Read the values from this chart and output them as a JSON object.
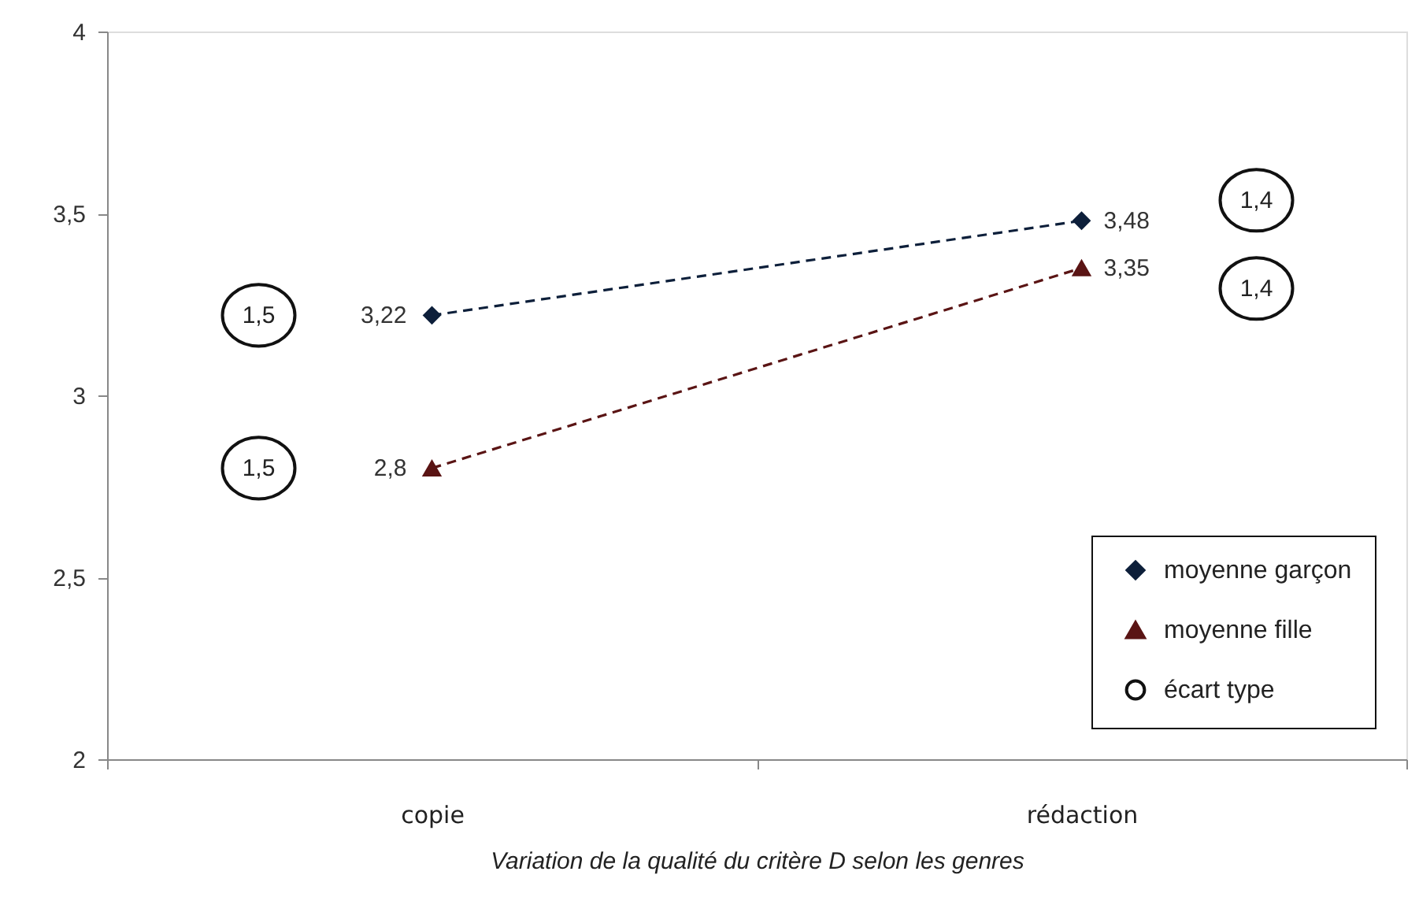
{
  "chart_data": {
    "type": "line",
    "xlabel": "Variation de la qualité du critère D selon les genres",
    "categories": [
      "copie",
      "rédaction"
    ],
    "series": [
      {
        "name": "moyenne garçon",
        "color": "#0d1f3a",
        "marker": "diamond",
        "values": [
          3.22,
          3.48
        ],
        "value_labels": [
          "3,22",
          "3,48"
        ]
      },
      {
        "name": "moyenne fille",
        "color": "#5a1414",
        "marker": "triangle",
        "values": [
          2.8,
          3.35
        ],
        "value_labels": [
          "2,8",
          "3,35"
        ]
      },
      {
        "name": "écart type",
        "type": "scatter",
        "color": "#111111",
        "marker": "circle",
        "values": [
          null,
          null
        ]
      }
    ],
    "ylim": [
      2,
      4
    ],
    "yticks": [
      2,
      {
        "value": 2.5,
        "label": "2,5"
      },
      3,
      {
        "value": 3.5,
        "label": "3,5"
      },
      4
    ],
    "grid": false,
    "legend": "bottom right",
    "line_style": "dashed",
    "annotations": [
      "1,5",
      "1,5",
      "1,4",
      "1,4"
    ]
  }
}
